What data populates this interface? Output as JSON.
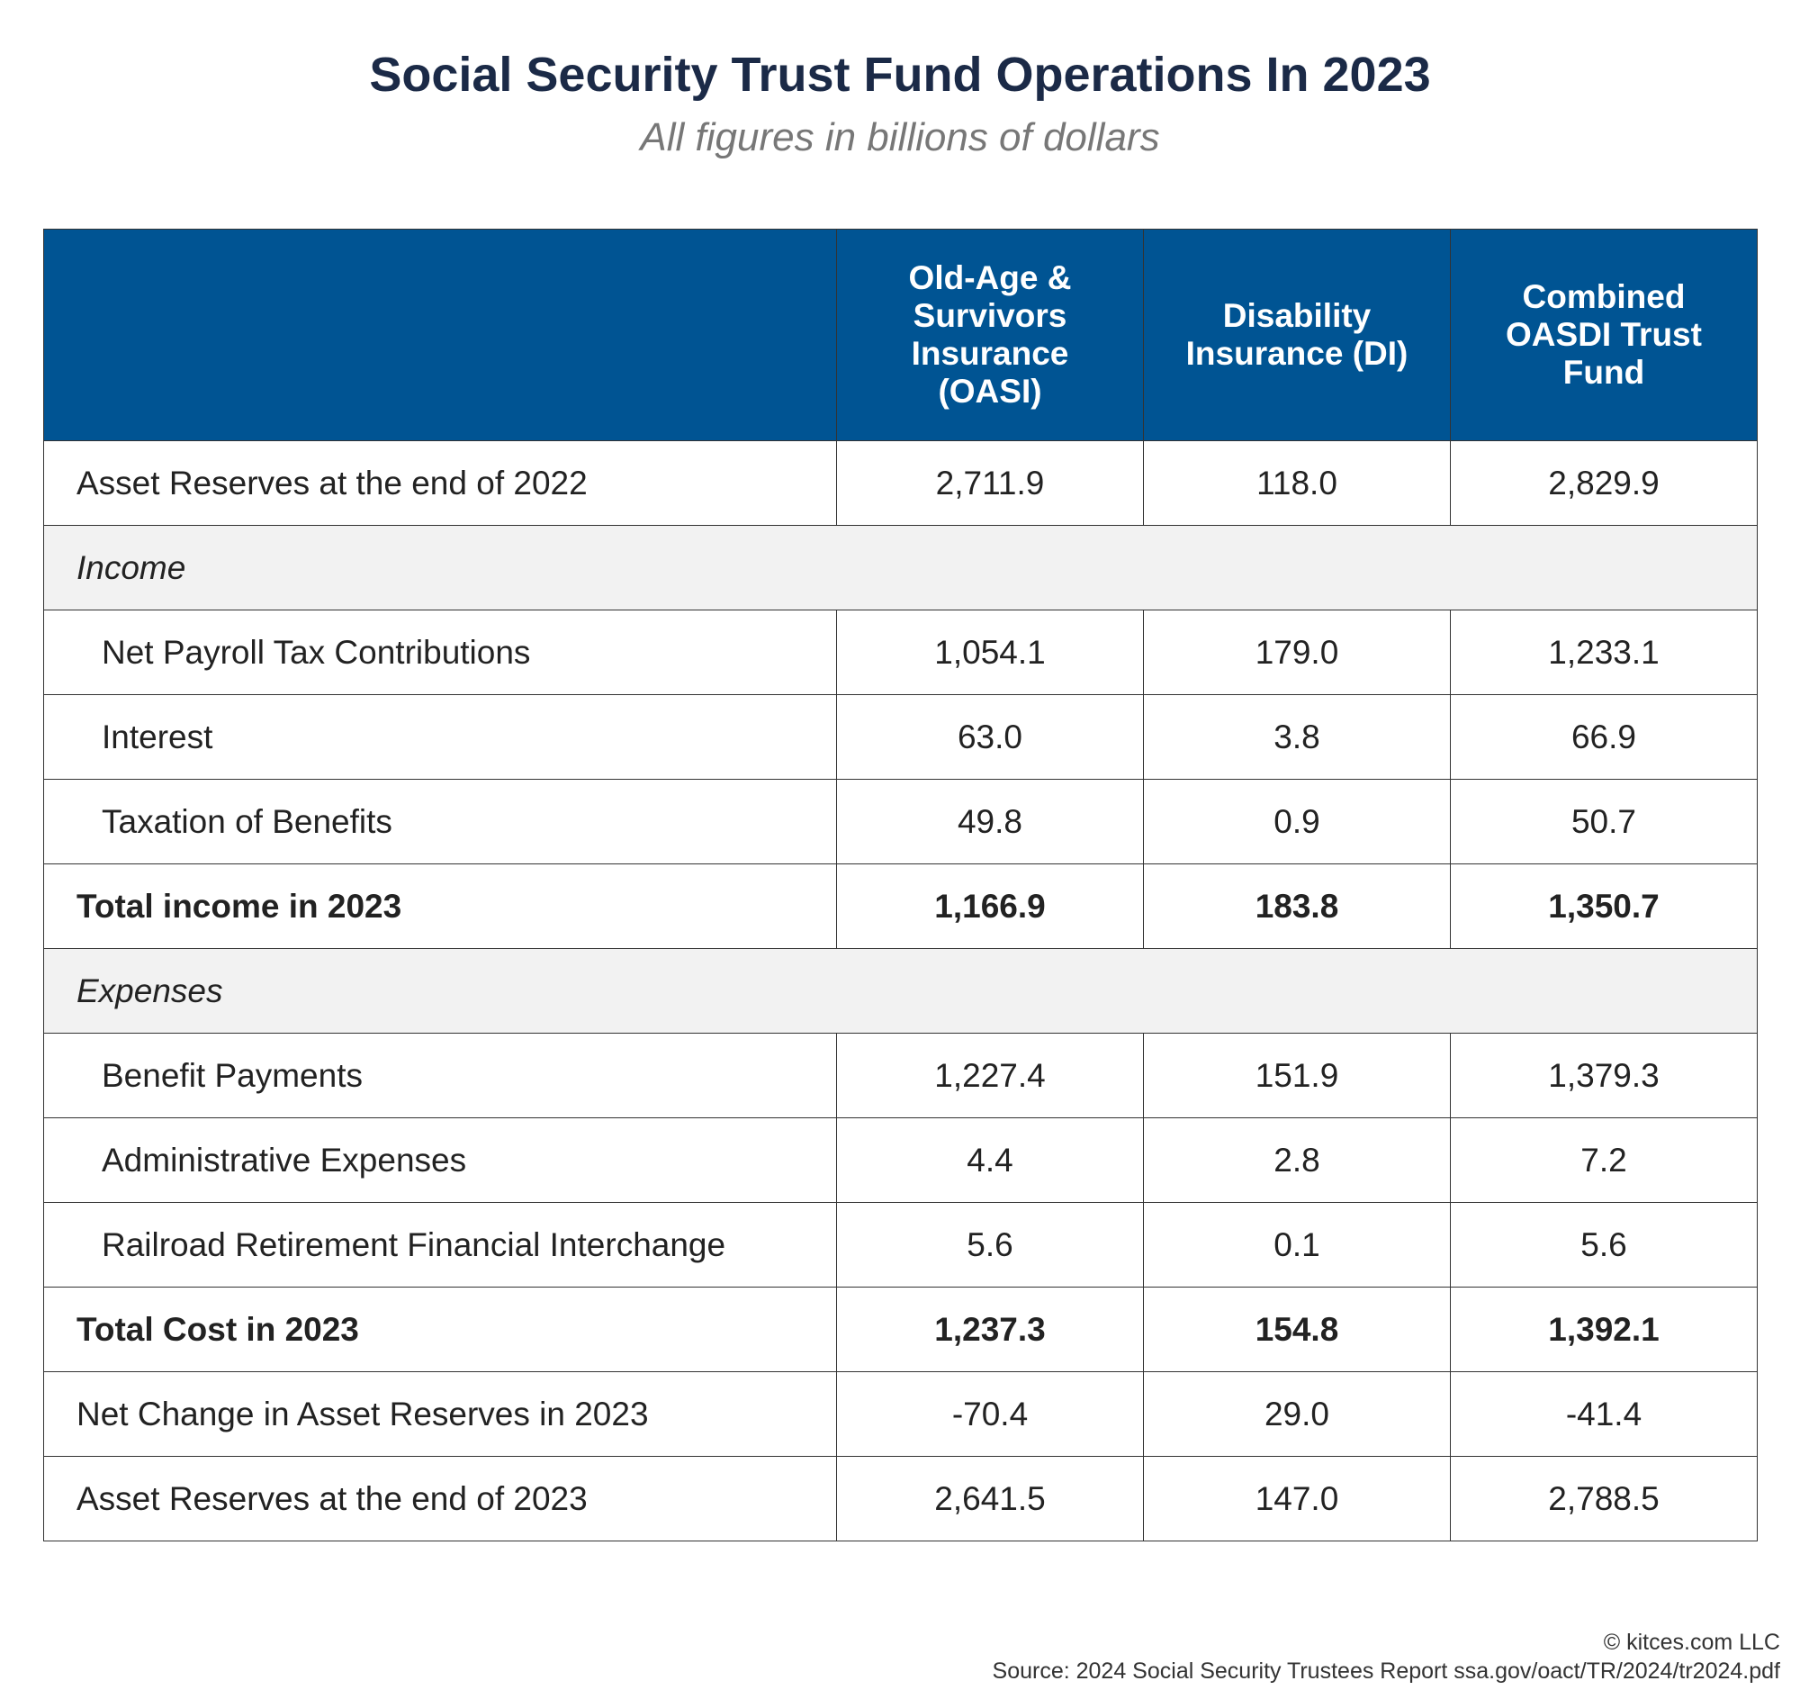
{
  "title": "Social Security Trust Fund Operations In 2023",
  "subtitle": "All figures in billions of dollars",
  "table": {
    "headers": [
      "",
      "Old-Age & Survivors Insurance (OASI)",
      "Disability Insurance (DI)",
      "Combined OASDI Trust Fund"
    ],
    "rows": [
      {
        "label": "Asset Reserves at the end of 2022",
        "values": [
          "2,711.9",
          "118.0",
          "2,829.9"
        ],
        "type": "normal"
      },
      {
        "label": "Income",
        "values": [],
        "type": "section"
      },
      {
        "label": "Net Payroll Tax Contributions",
        "values": [
          "1,054.1",
          "179.0",
          "1,233.1"
        ],
        "type": "indent"
      },
      {
        "label": "Interest",
        "values": [
          "63.0",
          "3.8",
          "66.9"
        ],
        "type": "indent"
      },
      {
        "label": "Taxation of Benefits",
        "values": [
          "49.8",
          "0.9",
          "50.7"
        ],
        "type": "indent"
      },
      {
        "label": "Total income in 2023",
        "values": [
          "1,166.9",
          "183.8",
          "1,350.7"
        ],
        "type": "total"
      },
      {
        "label": "Expenses",
        "values": [],
        "type": "section"
      },
      {
        "label": "Benefit Payments",
        "values": [
          "1,227.4",
          "151.9",
          "1,379.3"
        ],
        "type": "indent"
      },
      {
        "label": "Administrative Expenses",
        "values": [
          "4.4",
          "2.8",
          "7.2"
        ],
        "type": "indent"
      },
      {
        "label": "Railroad Retirement Financial Interchange",
        "values": [
          "5.6",
          "0.1",
          "5.6"
        ],
        "type": "indent"
      },
      {
        "label": "Total Cost in 2023",
        "values": [
          "1,237.3",
          "154.8",
          "1,392.1"
        ],
        "type": "total"
      },
      {
        "label": "Net Change in Asset Reserves in 2023",
        "values": [
          "-70.4",
          "29.0",
          "-41.4"
        ],
        "type": "normal"
      },
      {
        "label": "Asset Reserves at the end of 2023",
        "values": [
          "2,641.5",
          "147.0",
          "2,788.5"
        ],
        "type": "normal"
      }
    ]
  },
  "footer": {
    "copyright": "© kitces.com LLC",
    "source": "Source: 2024 Social Security Trustees Report ssa.gov/oact/TR/2024/tr2024.pdf"
  },
  "colors": {
    "header_bg": "#005493",
    "section_bg": "#f2f2f2",
    "title": "#1b2a47"
  }
}
